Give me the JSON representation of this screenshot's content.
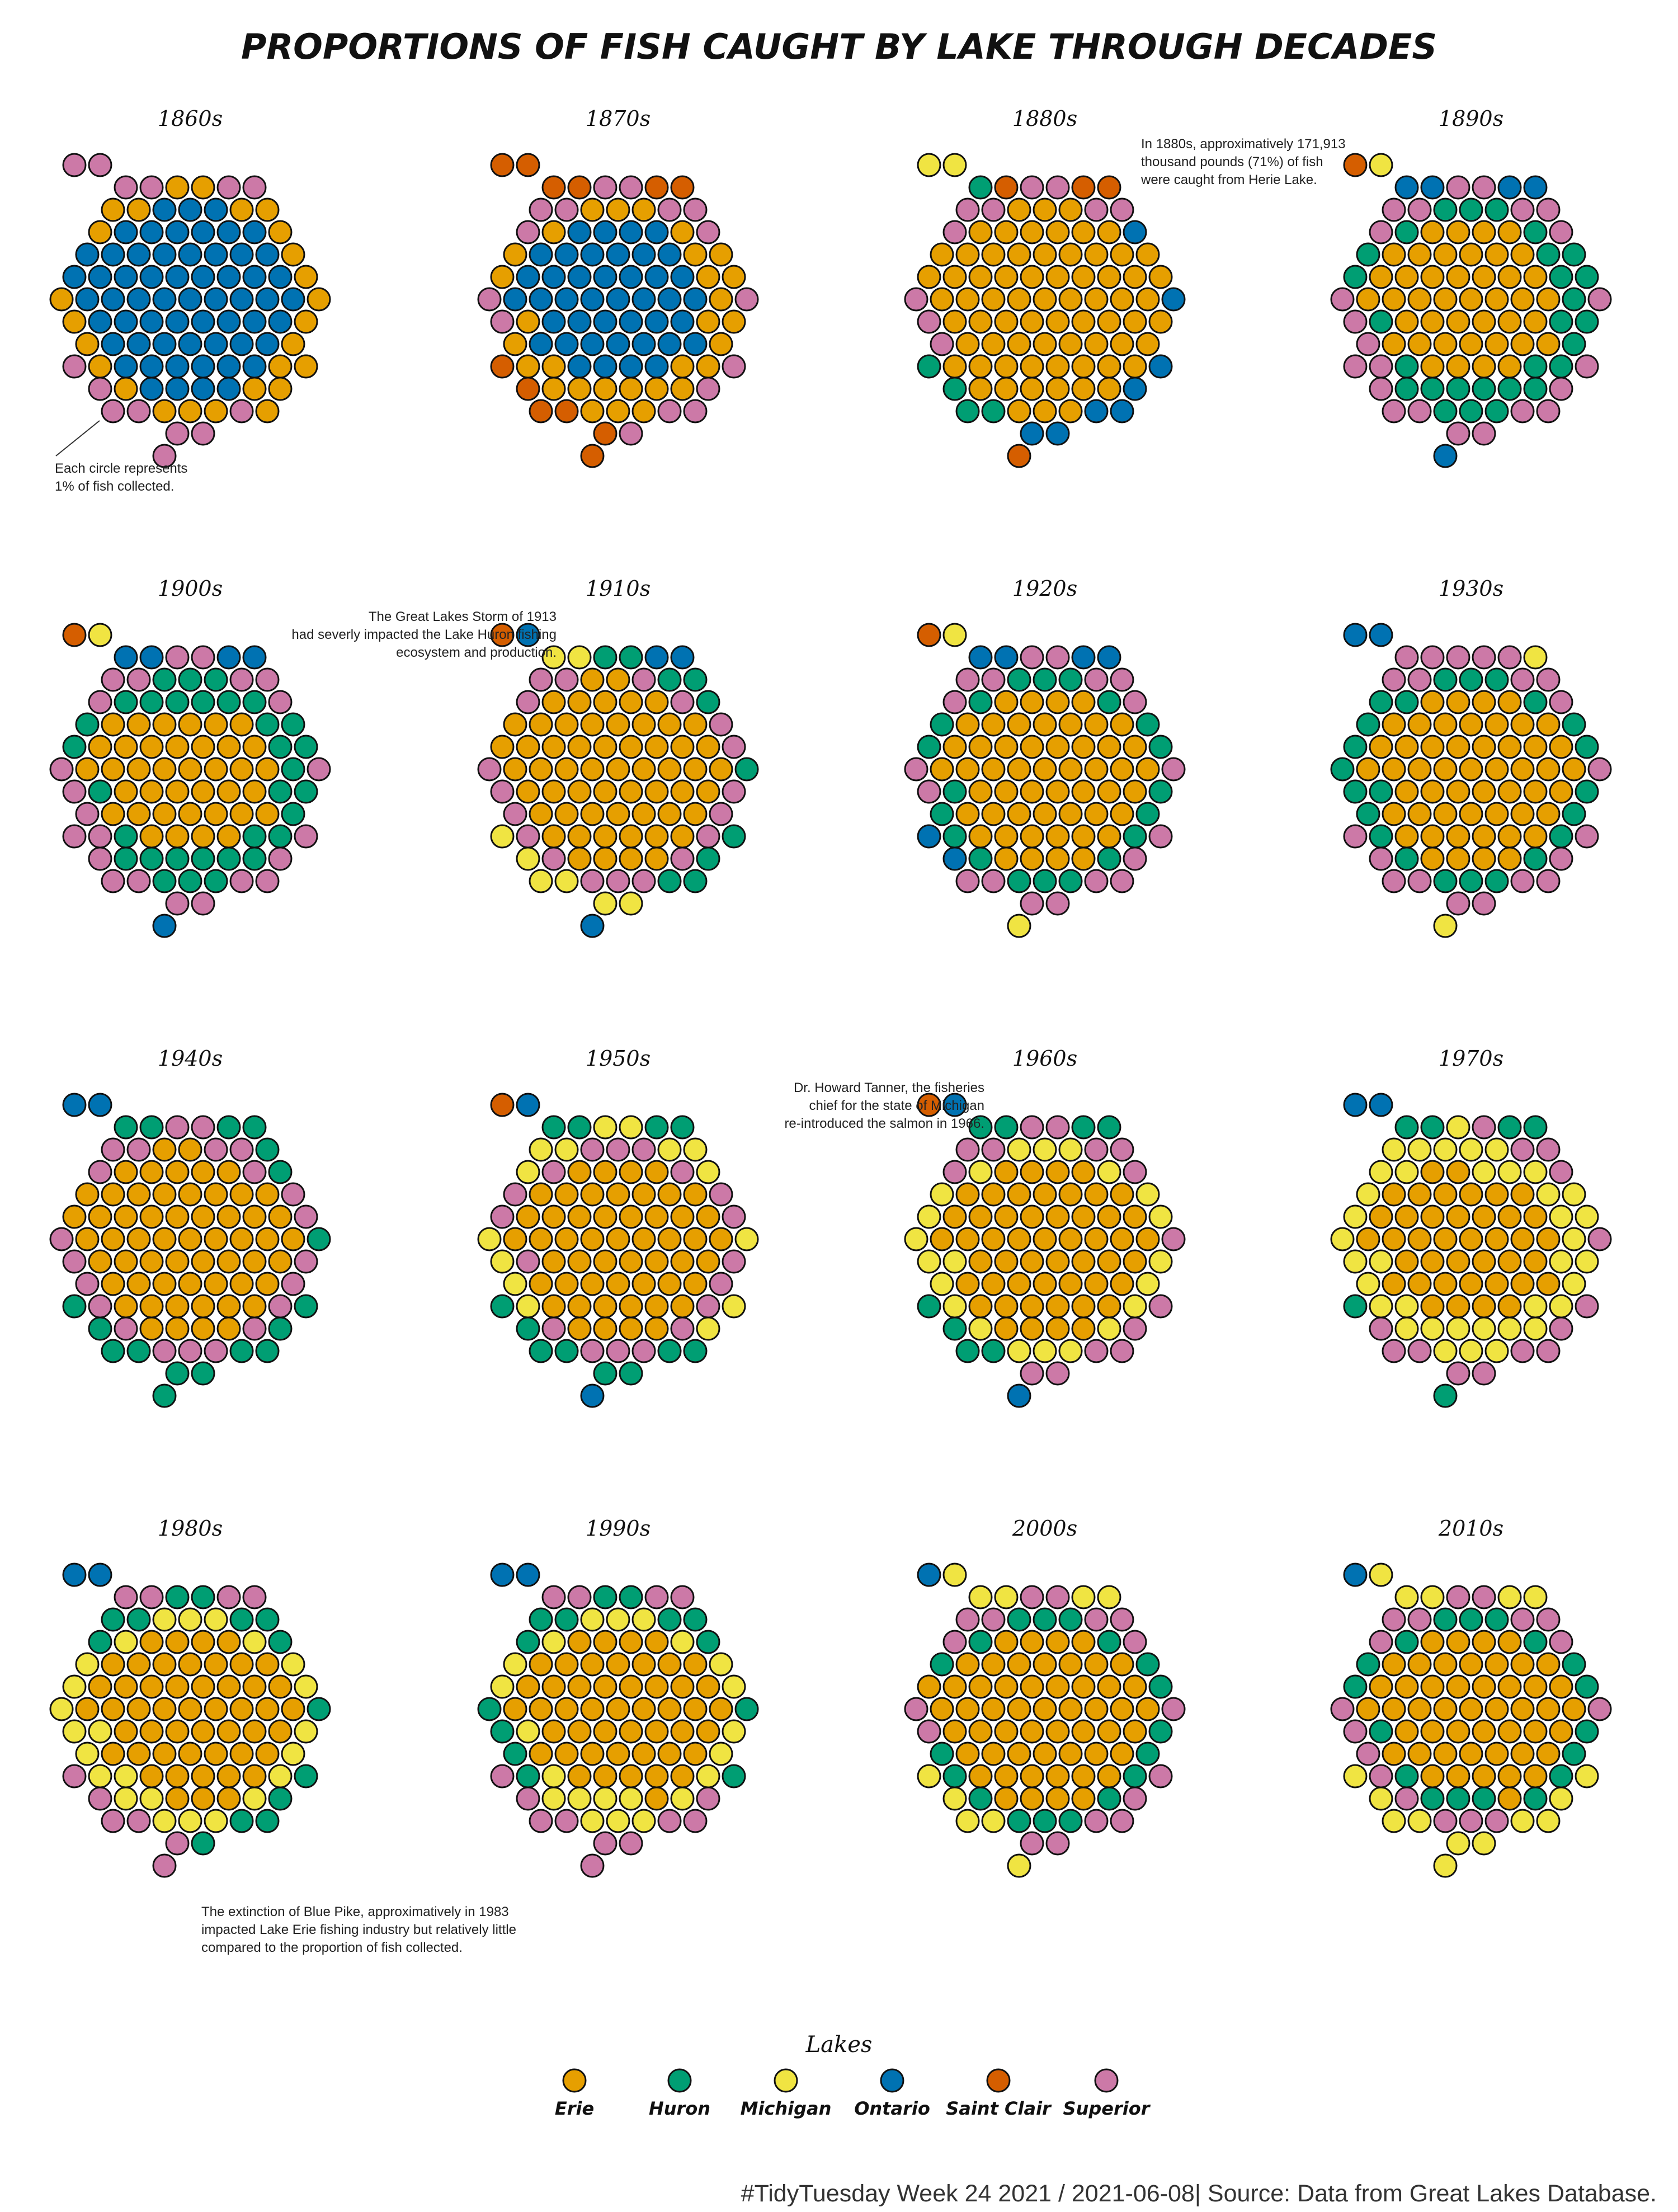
{
  "chart_data": {
    "type": "waffle-hexagon",
    "title": "PROPORTIONS OF FISH CAUGHT BY LAKE THROUGH DECADES",
    "unit_note": "Each  circle represents\n1% of fish collected.",
    "lakes": [
      "Erie",
      "Huron",
      "Michigan",
      "Ontario",
      "Saint Clair",
      "Superior"
    ],
    "colors": {
      "Erie": "#E69F00",
      "Huron": "#009E73",
      "Michigan": "#F0E442",
      "Ontario": "#0072B2",
      "Saint Clair": "#D55E00",
      "Superior": "#CC79A7"
    },
    "panels": [
      {
        "decade": "1860s",
        "percent": {
          "Erie": 26,
          "Huron": 0,
          "Michigan": 0,
          "Ontario": 60,
          "Saint Clair": 0,
          "Superior": 14
        }
      },
      {
        "decade": "1870s",
        "percent": {
          "Erie": 30,
          "Huron": 0,
          "Michigan": 0,
          "Ontario": 42,
          "Saint Clair": 12,
          "Superior": 16
        }
      },
      {
        "decade": "1880s",
        "percent": {
          "Erie": 71,
          "Huron": 5,
          "Michigan": 2,
          "Ontario": 8,
          "Saint Clair": 4,
          "Superior": 10
        }
      },
      {
        "decade": "1890s",
        "percent": {
          "Erie": 42,
          "Huron": 28,
          "Michigan": 1,
          "Ontario": 5,
          "Saint Clair": 1,
          "Superior": 23
        }
      },
      {
        "decade": "1900s",
        "percent": {
          "Erie": 38,
          "Huron": 32,
          "Michigan": 1,
          "Ontario": 5,
          "Saint Clair": 1,
          "Superior": 23
        }
      },
      {
        "decade": "1910s",
        "percent": {
          "Erie": 58,
          "Huron": 10,
          "Michigan": 8,
          "Ontario": 4,
          "Saint Clair": 1,
          "Superior": 19
        }
      },
      {
        "decade": "1920s",
        "percent": {
          "Erie": 52,
          "Huron": 20,
          "Michigan": 2,
          "Ontario": 6,
          "Saint Clair": 1,
          "Superior": 19
        }
      },
      {
        "decade": "1930s",
        "percent": {
          "Erie": 52,
          "Huron": 23,
          "Michigan": 2,
          "Ontario": 2,
          "Saint Clair": 0,
          "Superior": 21
        }
      },
      {
        "decade": "1940s",
        "percent": {
          "Erie": 58,
          "Huron": 18,
          "Michigan": 0,
          "Ontario": 2,
          "Saint Clair": 0,
          "Superior": 22
        }
      },
      {
        "decade": "1950s",
        "percent": {
          "Erie": 52,
          "Huron": 12,
          "Michigan": 15,
          "Ontario": 2,
          "Saint Clair": 1,
          "Superior": 18
        }
      },
      {
        "decade": "1960s",
        "percent": {
          "Erie": 52,
          "Huron": 8,
          "Michigan": 22,
          "Ontario": 2,
          "Saint Clair": 1,
          "Superior": 15
        }
      },
      {
        "decade": "1970s",
        "percent": {
          "Erie": 40,
          "Huron": 6,
          "Michigan": 38,
          "Ontario": 2,
          "Saint Clair": 0,
          "Superior": 14
        }
      },
      {
        "decade": "1980s",
        "percent": {
          "Erie": 50,
          "Huron": 14,
          "Michigan": 24,
          "Ontario": 2,
          "Saint Clair": 0,
          "Superior": 10
        }
      },
      {
        "decade": "1990s",
        "percent": {
          "Erie": 48,
          "Huron": 14,
          "Michigan": 22,
          "Ontario": 2,
          "Saint Clair": 0,
          "Superior": 14
        }
      },
      {
        "decade": "2000s",
        "percent": {
          "Erie": 54,
          "Huron": 18,
          "Michigan": 10,
          "Ontario": 1,
          "Saint Clair": 0,
          "Superior": 17
        }
      },
      {
        "decade": "2010s",
        "percent": {
          "Erie": 48,
          "Huron": 18,
          "Michigan": 16,
          "Ontario": 1,
          "Saint Clair": 0,
          "Superior": 17
        }
      }
    ],
    "annotations": [
      {
        "panel": "1880s",
        "text": "In 1880s, approximatively 171,913\nthousand pounds (71%) of fish\nwere caught from Herie Lake."
      },
      {
        "panel": "1910s",
        "text": "The Great Lakes Storm of 1913\nhad severly impacted the Lake Huron fishing\necosystem and production."
      },
      {
        "panel": "1960s",
        "text": "Dr. Howard Tanner, the  fisheries\nchief  for the state of Michigan\nre-introduced the salmon in 1966."
      },
      {
        "panel": "1980s",
        "text": "The extinction of Blue Pike, approximatively in 1983\nimpacted Lake Erie fishing industry but relatively little\ncompared to the proportion of fish collected."
      }
    ],
    "legend_title": "Lakes",
    "legend_position": "bottom",
    "caption": "#TidyTuesday Week 24 2021 / 2021-06-08| Source: Data from Great Lakes Database."
  }
}
